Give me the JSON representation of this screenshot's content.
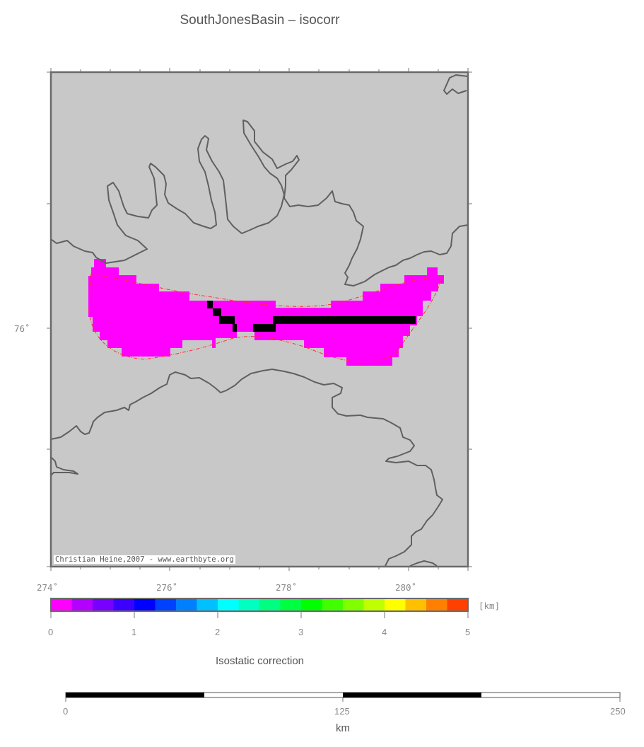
{
  "title": "SouthJonesBasin – isocorr",
  "credit": "Christian Heine,2007 - www.earthbyte.org",
  "map": {
    "lon_labels": [
      "274˚",
      "276˚",
      "278˚",
      "280˚"
    ],
    "lat_labels": [
      "76˚"
    ],
    "land_color": "#c8c8c8",
    "coastline_color": "#606060",
    "field_color": "#ff00ff",
    "anomaly_color": "#000000",
    "outline_color": "#ff3030"
  },
  "colorbar": {
    "unit": "[km]",
    "caption": "Isostatic correction",
    "tick_labels": [
      "0",
      "1",
      "2",
      "3",
      "4",
      "5"
    ],
    "colors": [
      "#ff00ff",
      "#b400ff",
      "#7800ff",
      "#3c00ff",
      "#0000ff",
      "#0040ff",
      "#0080ff",
      "#00c0ff",
      "#00ffff",
      "#00ffc0",
      "#00ff80",
      "#00ff40",
      "#00ff00",
      "#40ff00",
      "#80ff00",
      "#c0ff00",
      "#ffff00",
      "#ffc000",
      "#ff8000",
      "#ff4000"
    ]
  },
  "scalebar": {
    "labels": [
      "0",
      "125",
      "250"
    ],
    "unit": "km"
  }
}
